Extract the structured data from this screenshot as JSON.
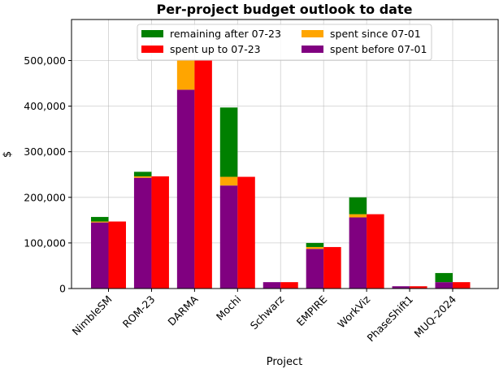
{
  "chart_data": {
    "type": "bar",
    "title": "Per-project budget outlook to date",
    "xlabel": "Project",
    "ylabel": "$",
    "ylim": [
      0,
      590000
    ],
    "yticks": [
      0,
      100000,
      200000,
      300000,
      400000,
      500000
    ],
    "ytick_labels": [
      "0",
      "100,000",
      "200,000",
      "300,000",
      "400,000",
      "500,000"
    ],
    "grid": true,
    "legend_position": "top-center",
    "categories": [
      "NimbleSM",
      "ROM-23",
      "DARMA",
      "Mochi",
      "Schwarz",
      "EMPIRE",
      "WorkViz",
      "PhaseShift1",
      "MUQ-2024"
    ],
    "stacked_bar_left": {
      "series": [
        {
          "name": "spent before 07-01",
          "color": "#800080",
          "values": [
            145000,
            243000,
            436000,
            226000,
            14000,
            87000,
            156000,
            5000,
            14000
          ]
        },
        {
          "name": "spent since 07-01",
          "color": "#FFA500",
          "values": [
            2000,
            3000,
            64000,
            19000,
            0,
            4000,
            7000,
            0,
            0
          ]
        },
        {
          "name": "remaining after 07-23",
          "color": "#008000",
          "values": [
            10000,
            10000,
            0,
            152000,
            0,
            9000,
            37000,
            0,
            20000
          ]
        }
      ]
    },
    "side_bar_right": {
      "name": "spent up to 07-23",
      "color": "#FF0000",
      "values": [
        147000,
        246000,
        500000,
        245000,
        14000,
        91000,
        163000,
        5000,
        14000
      ]
    },
    "legend": [
      {
        "label": "remaining after 07-23",
        "color": "#008000"
      },
      {
        "label": "spent since 07-01",
        "color": "#FFA500"
      },
      {
        "label": "spent up to 07-23",
        "color": "#FF0000"
      },
      {
        "label": "spent before 07-01",
        "color": "#800080"
      }
    ]
  }
}
